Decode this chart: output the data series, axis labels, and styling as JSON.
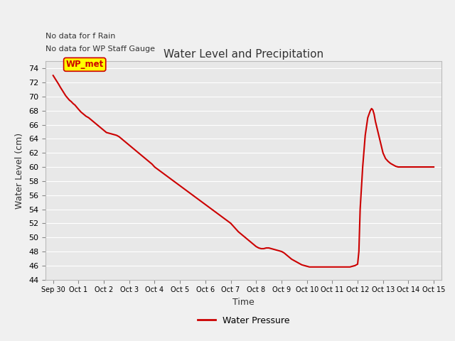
{
  "title": "Water Level and Precipitation",
  "xlabel": "Time",
  "ylabel": "Water Level (cm)",
  "ylim": [
    44,
    75
  ],
  "yticks": [
    44,
    46,
    48,
    50,
    52,
    54,
    56,
    58,
    60,
    62,
    64,
    66,
    68,
    70,
    72,
    74
  ],
  "line_color": "#cc0000",
  "line_width": 1.5,
  "fig_bg_color": "#f0f0f0",
  "plot_bg_color": "#e8e8e8",
  "annotation_text1": "No data for f Rain",
  "annotation_text2": "No data for WP Staff Gauge",
  "legend_label": "Water Pressure",
  "wp_met_label": "WP_met",
  "wp_met_box_color": "#ffff00",
  "wp_met_text_color": "#cc0000",
  "x_dates": [
    "Sep 30",
    "Oct 1",
    "Oct 2",
    "Oct 3",
    "Oct 4",
    "Oct 5",
    "Oct 6",
    "Oct 7",
    "Oct 8",
    "Oct 9",
    "Oct 10",
    "Oct 11",
    "Oct 12",
    "Oct 13",
    "Oct 14",
    "Oct 15"
  ],
  "water_pressure_x": [
    0.0,
    0.07,
    0.14,
    0.21,
    0.29,
    0.36,
    0.43,
    0.5,
    0.57,
    0.64,
    0.71,
    0.79,
    0.86,
    0.93,
    1.0,
    1.1,
    1.2,
    1.3,
    1.4,
    1.5,
    1.6,
    1.7,
    1.8,
    1.9,
    2.0,
    2.1,
    2.2,
    2.3,
    2.4,
    2.5,
    2.6,
    2.7,
    2.8,
    2.9,
    3.0,
    3.1,
    3.2,
    3.3,
    3.4,
    3.5,
    3.6,
    3.7,
    3.8,
    3.9,
    4.0,
    4.15,
    4.3,
    4.45,
    4.6,
    4.75,
    4.9,
    5.05,
    5.2,
    5.35,
    5.5,
    5.65,
    5.8,
    5.95,
    6.1,
    6.25,
    6.4,
    6.55,
    6.7,
    6.85,
    7.0,
    7.1,
    7.2,
    7.3,
    7.4,
    7.5,
    7.6,
    7.7,
    7.8,
    7.9,
    8.0,
    8.1,
    8.2,
    8.3,
    8.4,
    8.5,
    8.6,
    8.7,
    8.8,
    8.9,
    9.0,
    9.1,
    9.2,
    9.3,
    9.4,
    9.5,
    9.6,
    9.7,
    9.8,
    9.9,
    10.0,
    10.1,
    10.2,
    10.3,
    10.4,
    10.5,
    10.6,
    10.7,
    10.8,
    10.9,
    11.0,
    11.1,
    11.2,
    11.3,
    11.4,
    11.5,
    11.6,
    11.7,
    11.8,
    11.9,
    11.95,
    12.0,
    12.05,
    12.1,
    12.2,
    12.3,
    12.4,
    12.5,
    12.55,
    12.6,
    12.65,
    12.7,
    12.8,
    12.9,
    13.0,
    13.1,
    13.2,
    13.3,
    13.4,
    13.5,
    13.6,
    13.7,
    13.8,
    13.9,
    14.0,
    14.2,
    14.4,
    14.6,
    14.8,
    15.0
  ],
  "water_pressure_y": [
    73.0,
    72.6,
    72.2,
    71.8,
    71.3,
    70.9,
    70.5,
    70.1,
    69.8,
    69.5,
    69.3,
    69.0,
    68.8,
    68.5,
    68.2,
    67.8,
    67.5,
    67.2,
    67.0,
    66.7,
    66.4,
    66.1,
    65.8,
    65.5,
    65.2,
    64.9,
    64.8,
    64.7,
    64.6,
    64.5,
    64.3,
    64.0,
    63.7,
    63.4,
    63.1,
    62.8,
    62.5,
    62.2,
    61.9,
    61.6,
    61.3,
    61.0,
    60.7,
    60.4,
    60.0,
    59.6,
    59.2,
    58.8,
    58.4,
    58.0,
    57.6,
    57.2,
    56.8,
    56.4,
    56.0,
    55.6,
    55.2,
    54.8,
    54.4,
    54.0,
    53.6,
    53.2,
    52.8,
    52.4,
    52.0,
    51.6,
    51.2,
    50.8,
    50.5,
    50.2,
    49.9,
    49.6,
    49.3,
    49.0,
    48.7,
    48.5,
    48.4,
    48.4,
    48.5,
    48.5,
    48.4,
    48.3,
    48.2,
    48.1,
    48.0,
    47.8,
    47.5,
    47.2,
    46.9,
    46.7,
    46.5,
    46.3,
    46.1,
    46.0,
    45.9,
    45.8,
    45.8,
    45.8,
    45.8,
    45.8,
    45.8,
    45.8,
    45.8,
    45.8,
    45.8,
    45.8,
    45.8,
    45.8,
    45.8,
    45.8,
    45.8,
    45.8,
    45.9,
    46.0,
    46.1,
    46.2,
    48.0,
    54.0,
    60.0,
    64.5,
    67.0,
    68.0,
    68.3,
    68.1,
    67.5,
    66.5,
    65.0,
    63.5,
    62.0,
    61.2,
    60.8,
    60.5,
    60.3,
    60.1,
    60.0,
    60.0,
    60.0,
    60.0,
    60.0,
    60.0,
    60.0,
    60.0,
    60.0,
    60.0
  ]
}
